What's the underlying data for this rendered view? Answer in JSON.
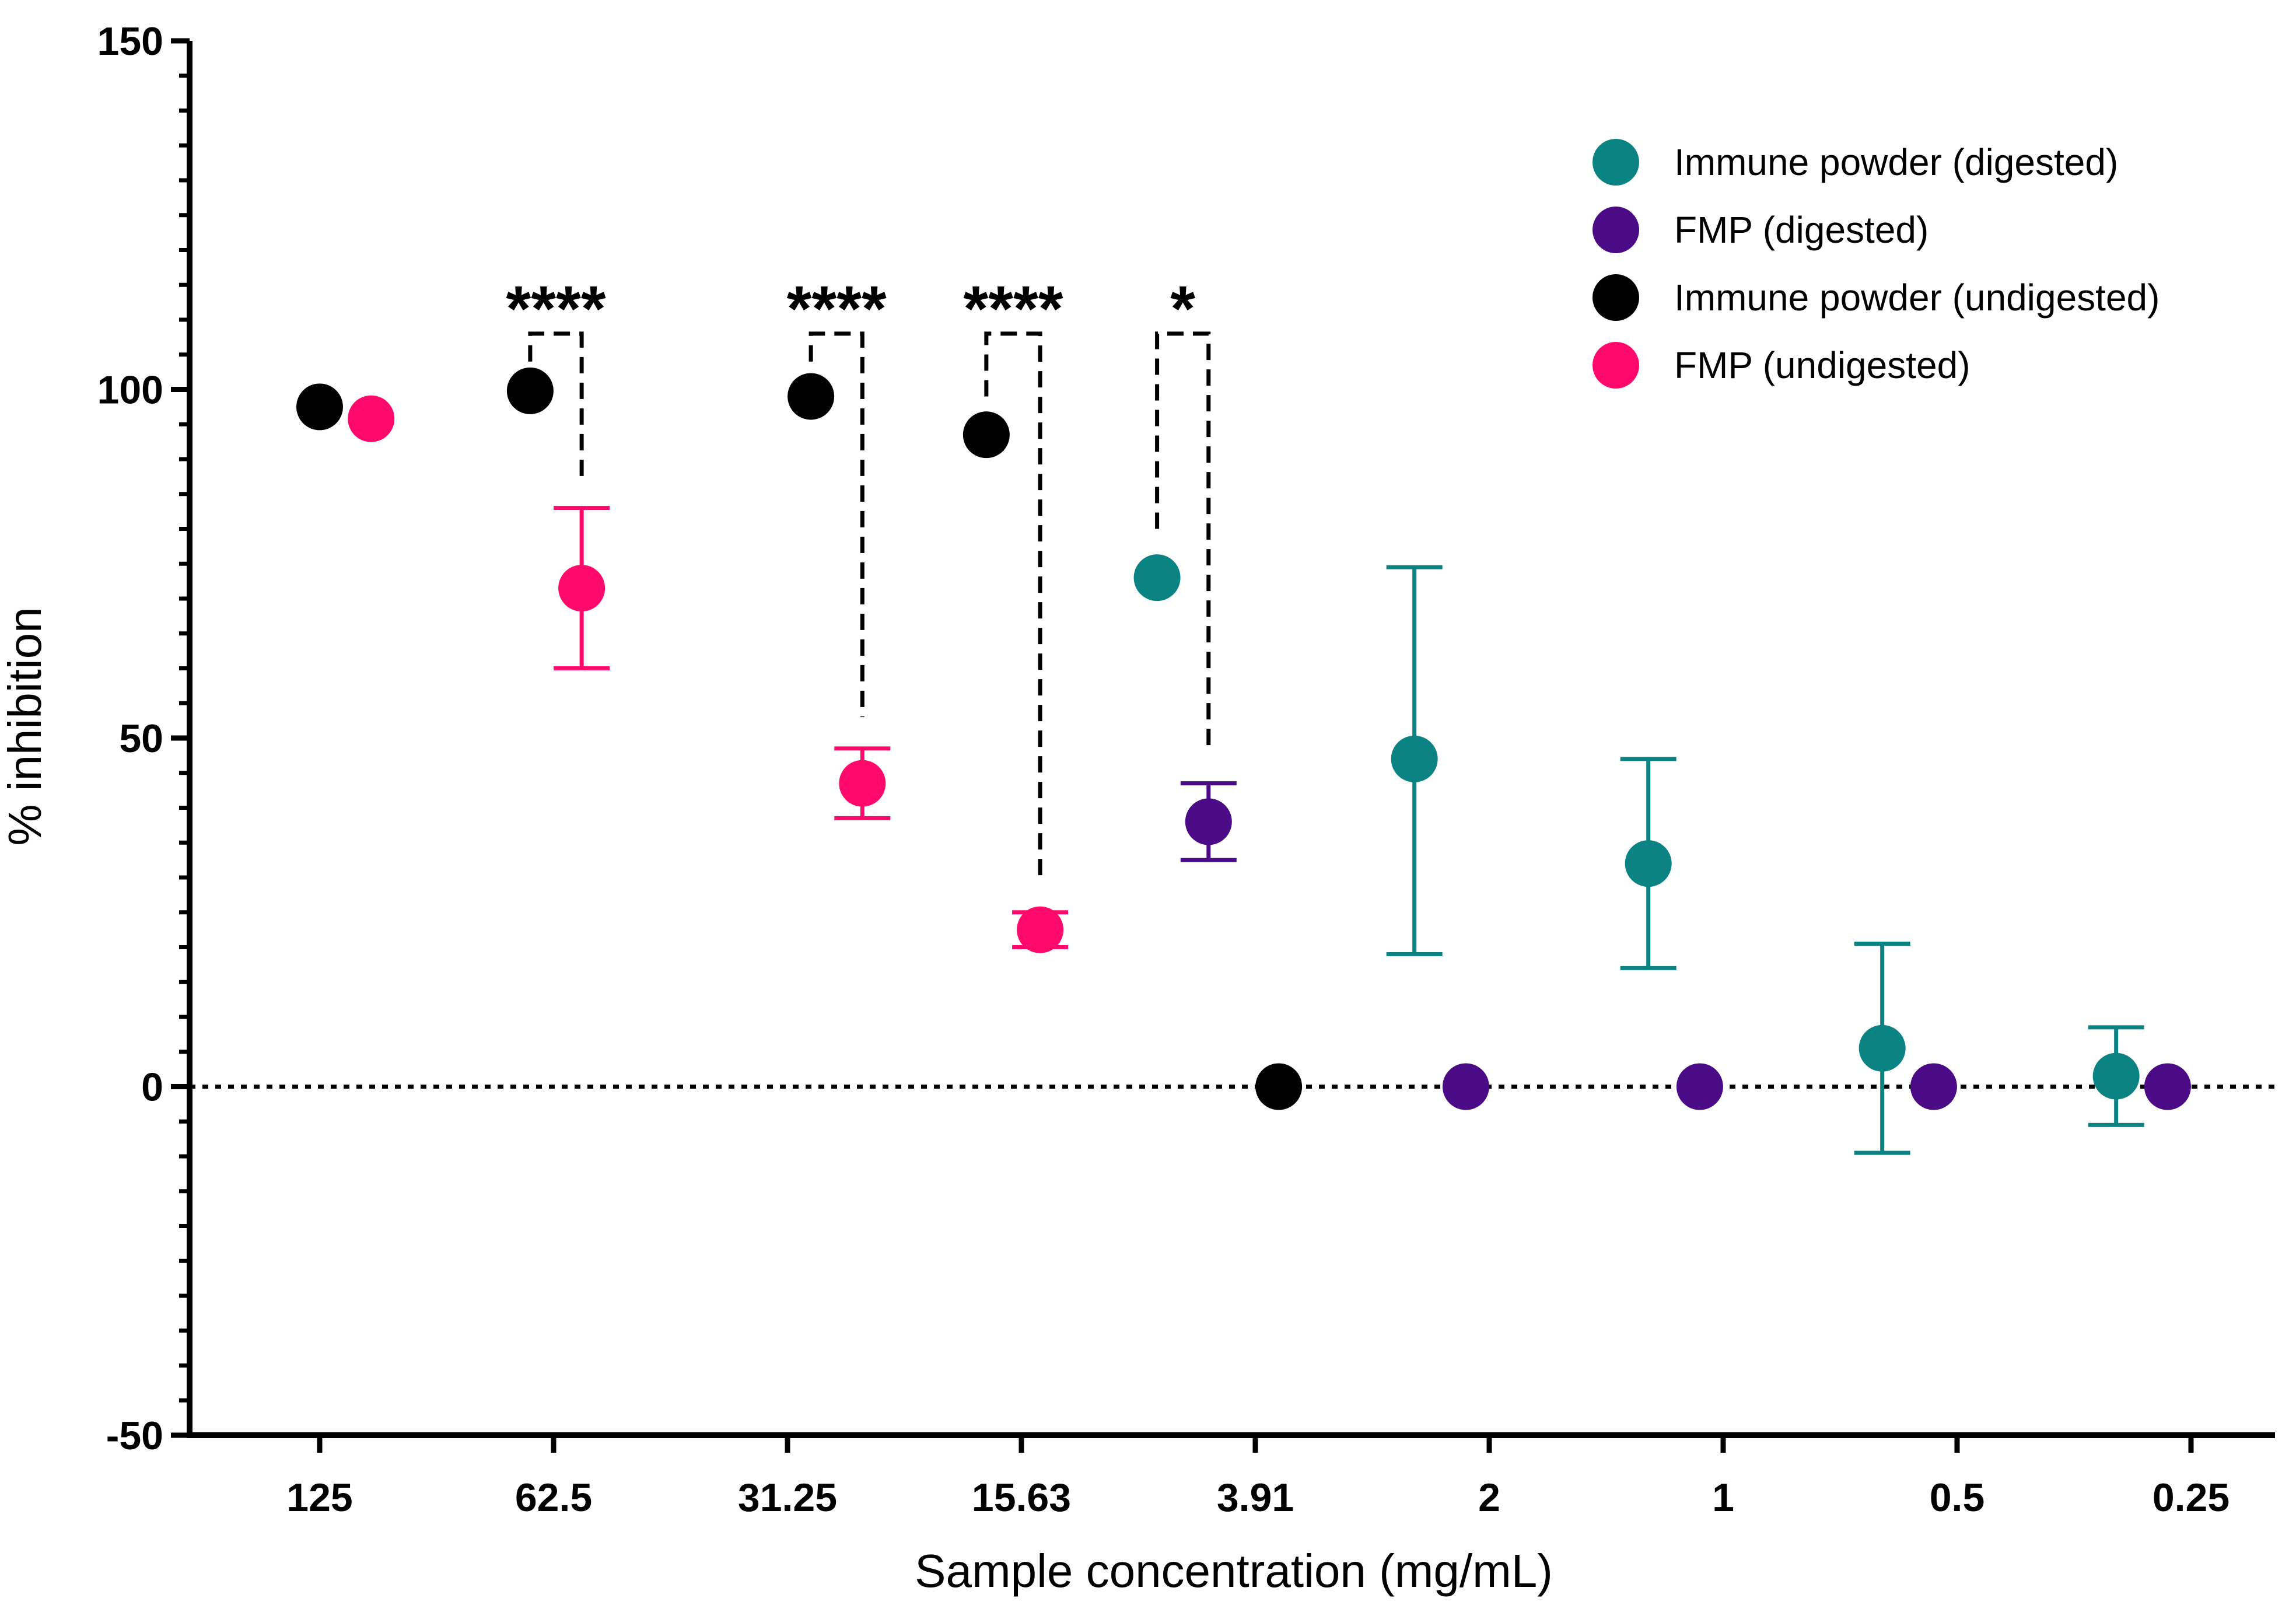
{
  "chart_data": {
    "type": "scatter",
    "title": "",
    "xlabel": "Sample concentration (mg/mL)",
    "ylabel": "% inhibition",
    "ylim": [
      -50,
      150
    ],
    "yticks": [
      -50,
      0,
      50,
      100,
      150
    ],
    "categories": [
      "125",
      "62.5",
      "31.25",
      "15.63",
      "3.91",
      "2",
      "1",
      "0.5",
      "0.25"
    ],
    "reference_line": {
      "y": 0,
      "style": "dotted"
    },
    "legend_position": "top-right",
    "series": [
      {
        "name": "Immune powder (digested)",
        "color": "#0b8383",
        "points": [
          {
            "category": "3.91",
            "offset": -0.42,
            "y": 73,
            "err": 0
          },
          {
            "category": "2",
            "offset": -0.32,
            "y": 47,
            "err_low": 28,
            "err_high": 27.5
          },
          {
            "category": "1",
            "offset": -0.32,
            "y": 32,
            "err_low": 15,
            "err_high": 15
          },
          {
            "category": "0.5",
            "offset": -0.32,
            "y": 5.5,
            "err_low": 15,
            "err_high": 15
          },
          {
            "category": "0.25",
            "offset": -0.32,
            "y": 1.5,
            "err_low": 7,
            "err_high": 7
          }
        ]
      },
      {
        "name": "FMP (digested)",
        "color": "#4b0a86",
        "points": [
          {
            "category": "3.91",
            "offset": -0.2,
            "y": 38,
            "err_low": 5.5,
            "err_high": 5.5
          },
          {
            "category": "2",
            "offset": -0.1,
            "y": 0,
            "err": 0
          },
          {
            "category": "1",
            "offset": -0.1,
            "y": 0,
            "err": 0
          },
          {
            "category": "0.5",
            "offset": -0.1,
            "y": 0,
            "err": 0
          },
          {
            "category": "0.25",
            "offset": -0.1,
            "y": 0,
            "err": 0
          }
        ]
      },
      {
        "name": "Immune powder (undigested)",
        "color": "#000000",
        "points": [
          {
            "category": "125",
            "offset": 0.0,
            "y": 97.5,
            "err": 1.0
          },
          {
            "category": "62.5",
            "offset": -0.1,
            "y": 99.8,
            "err": 0.5
          },
          {
            "category": "31.25",
            "offset": 0.1,
            "y": 99,
            "err": 0.8
          },
          {
            "category": "15.63",
            "offset": -0.15,
            "y": 93.5,
            "err_low": 2,
            "err_high": 2
          },
          {
            "category": "3.91",
            "offset": 0.1,
            "y": 0,
            "err": 0
          }
        ]
      },
      {
        "name": "FMP (undigested)",
        "color": "#ff0a6c",
        "points": [
          {
            "category": "125",
            "offset": 0.22,
            "y": 95.8,
            "err": 1.0
          },
          {
            "category": "62.5",
            "offset": 0.12,
            "y": 71.5,
            "err_low": 11.5,
            "err_high": 11.5
          },
          {
            "category": "31.25",
            "offset": 0.32,
            "y": 43.5,
            "err_low": 5,
            "err_high": 5
          },
          {
            "category": "15.63",
            "offset": 0.08,
            "y": 22.5,
            "err_low": 2.5,
            "err_high": 2.5
          }
        ]
      }
    ],
    "significance": [
      {
        "category": "62.5",
        "label": "****",
        "left_offset": -0.1,
        "right_offset": 0.12,
        "top_y": 108,
        "left_bottom_y": 104,
        "right_bottom_y": 87
      },
      {
        "category": "31.25",
        "label": "****",
        "left_offset": 0.1,
        "right_offset": 0.32,
        "top_y": 108,
        "left_bottom_y": 104,
        "right_bottom_y": 53
      },
      {
        "category": "15.63",
        "label": "****",
        "left_offset": -0.15,
        "right_offset": 0.08,
        "top_y": 108,
        "left_bottom_y": 99,
        "right_bottom_y": 29
      },
      {
        "category": "3.91",
        "label": "*",
        "left_offset": -0.42,
        "right_offset": -0.2,
        "top_y": 108,
        "left_bottom_y": 80,
        "right_bottom_y": 48
      }
    ]
  }
}
